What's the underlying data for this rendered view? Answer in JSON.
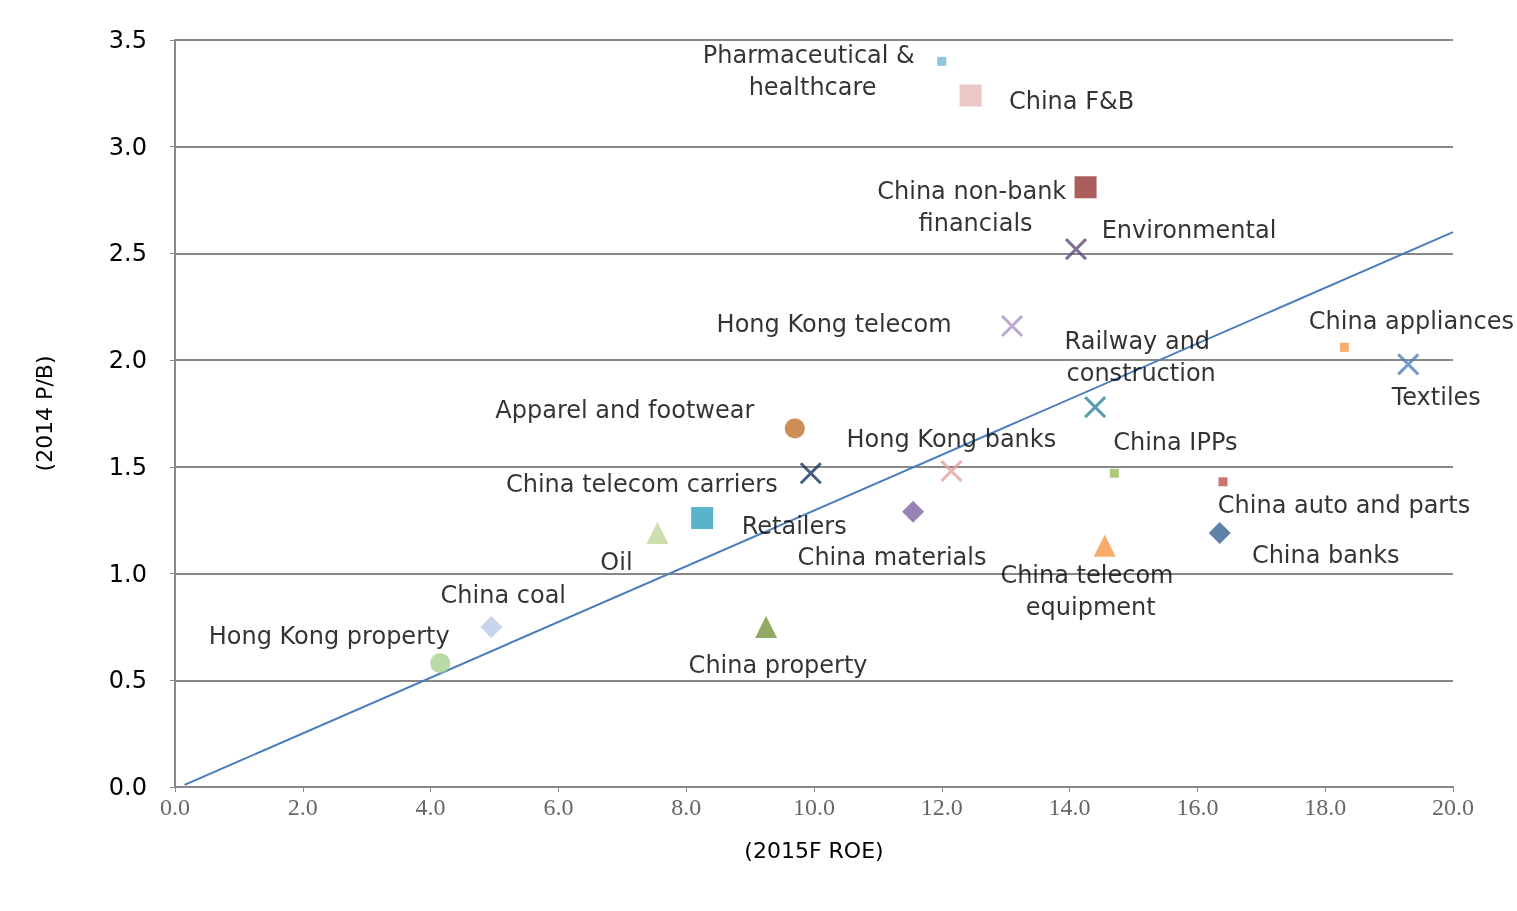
{
  "chart_data": {
    "type": "scatter",
    "xlabel": "(2015F ROE)",
    "ylabel": "(2014 P/B)",
    "xlim": [
      0,
      20
    ],
    "ylim": [
      0,
      3.5
    ],
    "xticks": [
      {
        "value": 0,
        "label": "0.0"
      },
      {
        "value": 2,
        "label": "2.0"
      },
      {
        "value": 4,
        "label": "4.0"
      },
      {
        "value": 6,
        "label": "6.0"
      },
      {
        "value": 8,
        "label": "8.0"
      },
      {
        "value": 10,
        "label": "10.0"
      },
      {
        "value": 12,
        "label": "12.0"
      },
      {
        "value": 14,
        "label": "14.0"
      },
      {
        "value": 16,
        "label": "16.0"
      },
      {
        "value": 18,
        "label": "18.0"
      },
      {
        "value": 20,
        "label": "20.0"
      }
    ],
    "yticks": [
      {
        "value": 0,
        "label": "0.0"
      },
      {
        "value": 0.5,
        "label": "0.5"
      },
      {
        "value": 1,
        "label": "1.0"
      },
      {
        "value": 1.5,
        "label": "1.5"
      },
      {
        "value": 2,
        "label": "2.0"
      },
      {
        "value": 2.5,
        "label": "2.5"
      },
      {
        "value": 3,
        "label": "3.0"
      },
      {
        "value": 3.5,
        "label": "3.5"
      }
    ],
    "grid": "y",
    "legend": false,
    "series": [
      {
        "type": "line",
        "color": "#4a7ebb",
        "x": [
          0.15,
          20
        ],
        "values": [
          0.01,
          2.6
        ],
        "marker": "none",
        "line_style": "solid"
      },
      {
        "name": "Pharmaceutical & healthcare",
        "color": "#6fb8d8",
        "x": [
          12.0
        ],
        "values": [
          3.4
        ],
        "marker": "square"
      },
      {
        "name": "China F&B",
        "color": "#e6b9b8",
        "x": [
          12.45
        ],
        "values": [
          3.24
        ],
        "marker": "square"
      },
      {
        "name": "China non-bank financials",
        "color": "#953735",
        "x": [
          14.25
        ],
        "values": [
          2.81
        ],
        "marker": "square"
      },
      {
        "name": "Environmental",
        "color": "#604a7b",
        "x": [
          14.1
        ],
        "values": [
          2.52
        ],
        "marker": "cross"
      },
      {
        "name": "Hong Kong telecom",
        "color": "#a992c8",
        "x": [
          13.1
        ],
        "values": [
          2.16
        ],
        "marker": "cross"
      },
      {
        "name": "China appliances",
        "color": "#f79646",
        "x": [
          18.3
        ],
        "values": [
          2.06
        ],
        "marker": "square"
      },
      {
        "name": "Textiles",
        "color": "#4f81bd",
        "x": [
          19.3
        ],
        "values": [
          1.98
        ],
        "marker": "cross"
      },
      {
        "name": "Railway and construction",
        "color": "#31849b",
        "x": [
          14.4
        ],
        "values": [
          1.78
        ],
        "marker": "cross"
      },
      {
        "name": "Apparel and footwear",
        "color": "#c0722c",
        "x": [
          9.7
        ],
        "values": [
          1.68
        ],
        "marker": "circle"
      },
      {
        "name": "Hong Kong banks",
        "color": "#e6a0a0",
        "x": [
          12.15
        ],
        "values": [
          1.48
        ],
        "marker": "cross"
      },
      {
        "name": "China IPPs",
        "color": "#9bbb59",
        "x": [
          14.7
        ],
        "values": [
          1.47
        ],
        "marker": "square"
      },
      {
        "name": "China auto and parts",
        "color": "#c0504d",
        "x": [
          16.4
        ],
        "values": [
          1.43
        ],
        "marker": "square"
      },
      {
        "name": "China telecom carriers",
        "color": "#17375e",
        "x": [
          9.95
        ],
        "values": [
          1.47
        ],
        "marker": "cross"
      },
      {
        "name": "China materials",
        "color": "#8064a2",
        "x": [
          11.55
        ],
        "values": [
          1.29
        ],
        "marker": "diamond"
      },
      {
        "name": "Retailers",
        "color": "#31a0be",
        "x": [
          8.25
        ],
        "values": [
          1.26
        ],
        "marker": "square"
      },
      {
        "name": "China banks",
        "color": "#376092",
        "x": [
          16.35
        ],
        "values": [
          1.19
        ],
        "marker": "diamond"
      },
      {
        "name": "Oil",
        "color": "#c3d69b",
        "x": [
          7.55
        ],
        "values": [
          1.19
        ],
        "marker": "triangle"
      },
      {
        "name": "China telecom equipment",
        "color": "#f79646",
        "x": [
          14.55
        ],
        "values": [
          1.13
        ],
        "marker": "triangle"
      },
      {
        "name": "China coal",
        "color": "#b9c9e6",
        "x": [
          4.95
        ],
        "values": [
          0.75
        ],
        "marker": "diamond"
      },
      {
        "name": "China property",
        "color": "#77933c",
        "x": [
          9.25
        ],
        "values": [
          0.75
        ],
        "marker": "triangle"
      },
      {
        "name": "Hong Kong property",
        "color": "#a9d18e",
        "x": [
          4.15
        ],
        "values": [
          0.58
        ],
        "marker": "circle"
      }
    ]
  }
}
